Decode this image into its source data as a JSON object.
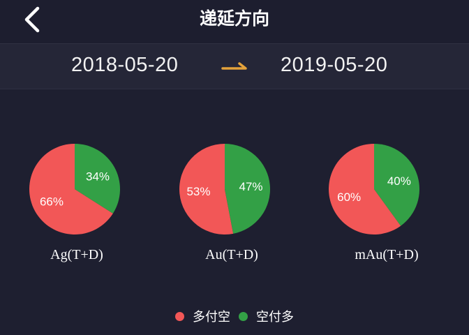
{
  "header": {
    "title": "递延方向",
    "back_icon": "chevron-left-icon"
  },
  "date_range": {
    "start": "2018-05-20",
    "end": "2019-05-20",
    "arrow_icon": "arrow-right-icon"
  },
  "colors": {
    "red": "#f25757",
    "green": "#33a046",
    "accent": "#e4a23b"
  },
  "chart_data": [
    {
      "type": "pie",
      "title": "Ag(T+D)",
      "labels": [
        "多付空",
        "空付多"
      ],
      "values": [
        66,
        34
      ],
      "display": [
        "66%",
        "34%"
      ]
    },
    {
      "type": "pie",
      "title": "Au(T+D)",
      "labels": [
        "多付空",
        "空付多"
      ],
      "values": [
        53,
        47
      ],
      "display": [
        "53%",
        "47%"
      ]
    },
    {
      "type": "pie",
      "title": "mAu(T+D)",
      "labels": [
        "多付空",
        "空付多"
      ],
      "values": [
        60,
        40
      ],
      "display": [
        "60%",
        "40%"
      ]
    }
  ],
  "legend": [
    {
      "label": "多付空",
      "color": "#f25757"
    },
    {
      "label": "空付多",
      "color": "#33a046"
    }
  ]
}
